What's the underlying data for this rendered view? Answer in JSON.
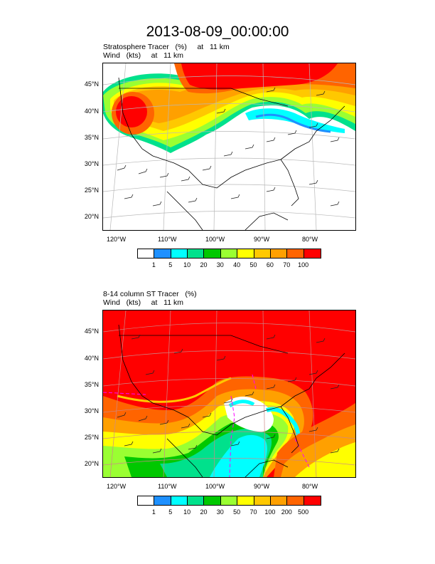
{
  "title": "2013-08-09_00:00:00",
  "panels": [
    {
      "line1": "Stratosphere Tracer   (%)     at   11 km",
      "line2": "Wind   (kts)     at   11 km",
      "lat_labels": [
        "45°N",
        "40°N",
        "35°N",
        "30°N",
        "25°N",
        "20°N"
      ],
      "lon_labels": [
        "120°W",
        "110°W",
        "100°W",
        "90°W",
        "80°W"
      ],
      "colorbar_labels": [
        "1",
        "5",
        "10",
        "20",
        "30",
        "40",
        "50",
        "60",
        "70",
        "100"
      ],
      "colorbar_colors": [
        "#ffffff",
        "#1e90ff",
        "#00ffff",
        "#00e18c",
        "#00c800",
        "#9aff32",
        "#ffff00",
        "#ffc800",
        "#ffa000",
        "#ff6400",
        "#ff0000"
      ]
    },
    {
      "line1": "8-14 column ST Tracer   (%)",
      "line2": "Wind   (kts)     at   11 km",
      "lat_labels": [
        "45°N",
        "40°N",
        "35°N",
        "30°N",
        "25°N",
        "20°N"
      ],
      "lon_labels": [
        "120°W",
        "110°W",
        "100°W",
        "90°W",
        "80°W"
      ],
      "colorbar_labels": [
        "1",
        "5",
        "10",
        "20",
        "30",
        "50",
        "70",
        "100",
        "200",
        "500"
      ],
      "colorbar_colors": [
        "#ffffff",
        "#1e90ff",
        "#00ffff",
        "#00e18c",
        "#00c800",
        "#9aff32",
        "#ffff00",
        "#ffc800",
        "#ffa000",
        "#ff6400",
        "#ff0000"
      ]
    }
  ]
}
